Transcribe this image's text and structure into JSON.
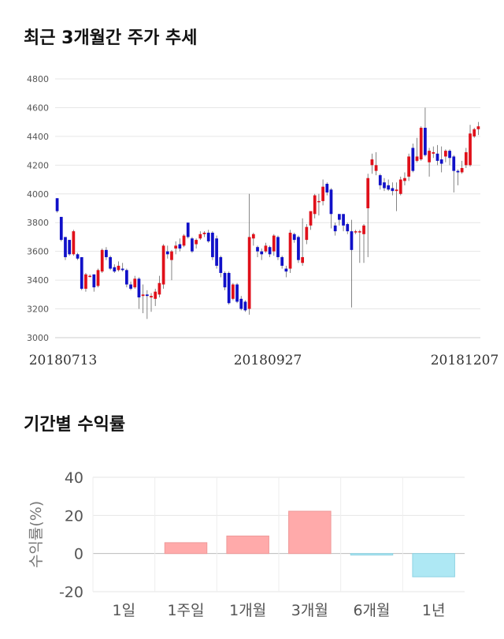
{
  "titles": {
    "price_trend": "최근 3개월간 주가 추세",
    "period_returns": "기간별 수익률"
  },
  "chart_data": [
    {
      "type": "candlestick",
      "title": "최근 3개월간 주가 추세",
      "ylim": [
        3000,
        4800
      ],
      "yticks": [
        3000,
        3200,
        3400,
        3600,
        3800,
        4000,
        4200,
        4400,
        4600,
        4800
      ],
      "x_labels": [
        "20180713",
        "20180927",
        "20181207"
      ],
      "grid": true,
      "up_color": "#e0101a",
      "down_color": "#1010c8",
      "candles": [
        [
          3970,
          3880,
          3970,
          3870
        ],
        [
          3840,
          3680,
          3840,
          3670
        ],
        [
          3700,
          3560,
          3700,
          3540
        ],
        [
          3680,
          3580,
          3680,
          3570
        ],
        [
          3580,
          3740,
          3750,
          3570
        ],
        [
          3580,
          3550,
          3590,
          3540
        ],
        [
          3560,
          3340,
          3560,
          3330
        ],
        [
          3340,
          3440,
          3450,
          3320
        ],
        [
          3430,
          3430,
          3440,
          3420
        ],
        [
          3440,
          3350,
          3440,
          3320
        ],
        [
          3360,
          3470,
          3480,
          3350
        ],
        [
          3460,
          3610,
          3620,
          3450
        ],
        [
          3610,
          3560,
          3630,
          3540
        ],
        [
          3560,
          3480,
          3570,
          3470
        ],
        [
          3490,
          3460,
          3510,
          3450
        ],
        [
          3470,
          3500,
          3530,
          3460
        ],
        [
          3480,
          3470,
          3520,
          3460
        ],
        [
          3470,
          3370,
          3480,
          3350
        ],
        [
          3370,
          3340,
          3390,
          3330
        ],
        [
          3350,
          3410,
          3430,
          3340
        ],
        [
          3410,
          3280,
          3420,
          3200
        ],
        [
          3290,
          3300,
          3370,
          3170
        ],
        [
          3300,
          3290,
          3330,
          3130
        ],
        [
          3280,
          3290,
          3310,
          3180
        ],
        [
          3270,
          3320,
          3340,
          3220
        ],
        [
          3300,
          3380,
          3430,
          3280
        ],
        [
          3370,
          3640,
          3650,
          3340
        ],
        [
          3600,
          3580,
          3640,
          3550
        ],
        [
          3540,
          3600,
          3610,
          3400
        ],
        [
          3620,
          3640,
          3670,
          3580
        ],
        [
          3650,
          3620,
          3690,
          3600
        ],
        [
          3640,
          3710,
          3720,
          3630
        ],
        [
          3800,
          3700,
          3800,
          3690
        ],
        [
          3690,
          3600,
          3700,
          3590
        ],
        [
          3650,
          3680,
          3690,
          3620
        ],
        [
          3690,
          3720,
          3740,
          3680
        ],
        [
          3720,
          3730,
          3740,
          3700
        ],
        [
          3730,
          3670,
          3750,
          3660
        ],
        [
          3730,
          3560,
          3740,
          3540
        ],
        [
          3690,
          3500,
          3710,
          3480
        ],
        [
          3560,
          3450,
          3570,
          3420
        ],
        [
          3450,
          3350,
          3460,
          3330
        ],
        [
          3450,
          3240,
          3460,
          3230
        ],
        [
          3270,
          3370,
          3380,
          3260
        ],
        [
          3370,
          3250,
          3380,
          3240
        ],
        [
          3270,
          3200,
          3290,
          3190
        ],
        [
          3250,
          3190,
          3260,
          3180
        ],
        [
          3200,
          3700,
          4000,
          3160
        ],
        [
          3690,
          3720,
          3730,
          3640
        ],
        [
          3630,
          3600,
          3640,
          3560
        ],
        [
          3600,
          3580,
          3620,
          3540
        ],
        [
          3600,
          3640,
          3660,
          3590
        ],
        [
          3630,
          3580,
          3640,
          3560
        ],
        [
          3600,
          3710,
          3720,
          3570
        ],
        [
          3700,
          3560,
          3710,
          3540
        ],
        [
          3560,
          3500,
          3570,
          3480
        ],
        [
          3480,
          3460,
          3500,
          3420
        ],
        [
          3480,
          3730,
          3750,
          3450
        ],
        [
          3720,
          3680,
          3730,
          3660
        ],
        [
          3700,
          3540,
          3710,
          3520
        ],
        [
          3520,
          3560,
          3830,
          3500
        ],
        [
          3680,
          3770,
          3790,
          3650
        ],
        [
          3780,
          3880,
          3850,
          3750
        ],
        [
          3860,
          3990,
          4000,
          3830
        ],
        [
          3950,
          3950,
          4000,
          3850
        ],
        [
          3950,
          4050,
          4100,
          3920
        ],
        [
          4070,
          4010,
          4080,
          3990
        ],
        [
          4030,
          3860,
          4040,
          3760
        ],
        [
          3780,
          3740,
          3800,
          3710
        ],
        [
          3860,
          3820,
          3860,
          3780
        ],
        [
          3860,
          3780,
          3860,
          3740
        ],
        [
          3790,
          3740,
          3800,
          3720
        ],
        [
          3740,
          3610,
          3820,
          3210
        ],
        [
          3740,
          3740,
          3750,
          3720
        ],
        [
          3740,
          3740,
          3750,
          3520
        ],
        [
          3720,
          3780,
          3790,
          3520
        ],
        [
          3900,
          4110,
          4140,
          3560
        ],
        [
          4200,
          4240,
          4280,
          4140
        ],
        [
          4160,
          4200,
          4290,
          4130
        ],
        [
          4130,
          4060,
          4140,
          4030
        ],
        [
          4080,
          4040,
          4110,
          4020
        ],
        [
          4060,
          4030,
          4100,
          4020
        ],
        [
          4040,
          4020,
          4080,
          3990
        ],
        [
          4020,
          4030,
          4080,
          3880
        ],
        [
          4000,
          4100,
          4120,
          3990
        ],
        [
          4090,
          4110,
          4150,
          4060
        ],
        [
          4120,
          4260,
          4280,
          4090
        ],
        [
          4320,
          4160,
          4350,
          4150
        ],
        [
          4230,
          4260,
          4390,
          4220
        ],
        [
          4240,
          4460,
          4470,
          4230
        ],
        [
          4460,
          4270,
          4600,
          4260
        ],
        [
          4220,
          4300,
          4320,
          4120
        ],
        [
          4280,
          4290,
          4330,
          4250
        ],
        [
          4280,
          4230,
          4340,
          4200
        ],
        [
          4240,
          4210,
          4330,
          4150
        ],
        [
          4260,
          4300,
          4310,
          4220
        ],
        [
          4300,
          4250,
          4310,
          4200
        ],
        [
          4260,
          4160,
          4270,
          4010
        ],
        [
          4160,
          4150,
          4170,
          4060
        ],
        [
          4150,
          4180,
          4230,
          4140
        ],
        [
          4200,
          4290,
          4320,
          4180
        ],
        [
          4200,
          4420,
          4480,
          4190
        ],
        [
          4400,
          4450,
          4460,
          4390
        ],
        [
          4450,
          4470,
          4500,
          4410
        ]
      ]
    },
    {
      "type": "bar",
      "title": "기간별 수익률",
      "ylabel": "수익률(%)",
      "categories": [
        "1일",
        "1주일",
        "1개월",
        "3개월",
        "6개월",
        "1년"
      ],
      "values": [
        0.0,
        5.7,
        9.2,
        22.2,
        -0.8,
        -12.2
      ],
      "ylim": [
        -20,
        40
      ],
      "yticks": [
        -20,
        0,
        20,
        40
      ],
      "grid": true,
      "positive_color": "#ffaaaa",
      "negative_color": "#aee8f4"
    }
  ]
}
